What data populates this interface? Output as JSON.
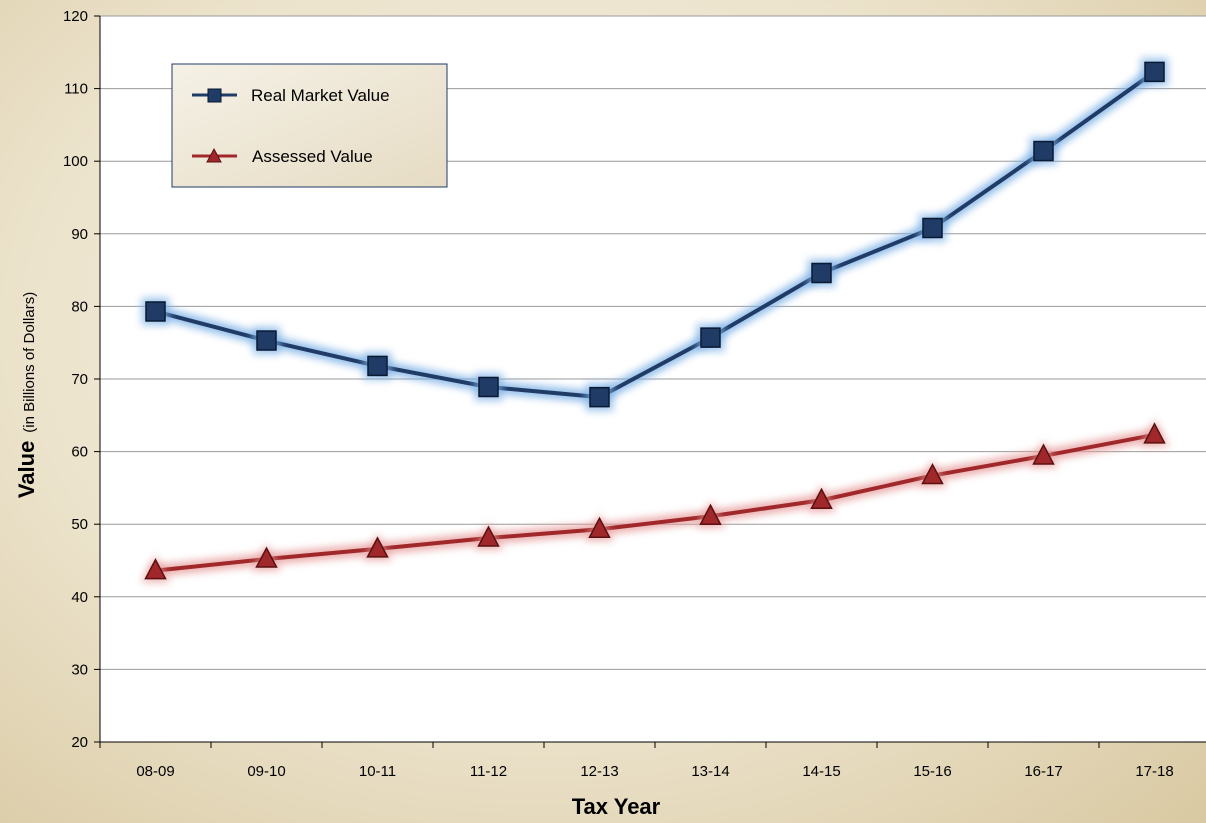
{
  "chart_data": {
    "type": "line",
    "categories": [
      "08-09",
      "09-10",
      "10-11",
      "11-12",
      "12-13",
      "13-14",
      "14-15",
      "15-16",
      "16-17",
      "17-18"
    ],
    "series": [
      {
        "name": "Real Market Value",
        "values": [
          79.3,
          75.3,
          71.8,
          68.9,
          67.5,
          75.7,
          84.6,
          90.8,
          101.4,
          112.3
        ],
        "color": "#1f3b66",
        "marker": "square"
      },
      {
        "name": "Assessed Value",
        "values": [
          43.6,
          45.2,
          46.6,
          48.1,
          49.3,
          51.1,
          53.3,
          56.7,
          59.4,
          62.3
        ],
        "color": "#a0282a",
        "marker": "triangle"
      }
    ],
    "xlabel": "Tax Year",
    "ylabel": "Value",
    "ylabel_sub": "(in Billions of Dollars)",
    "ylim": [
      20,
      120
    ],
    "yticks": [
      20,
      30,
      40,
      50,
      60,
      70,
      80,
      90,
      100,
      110,
      120
    ],
    "grid": true,
    "legend_position": "top-left"
  }
}
